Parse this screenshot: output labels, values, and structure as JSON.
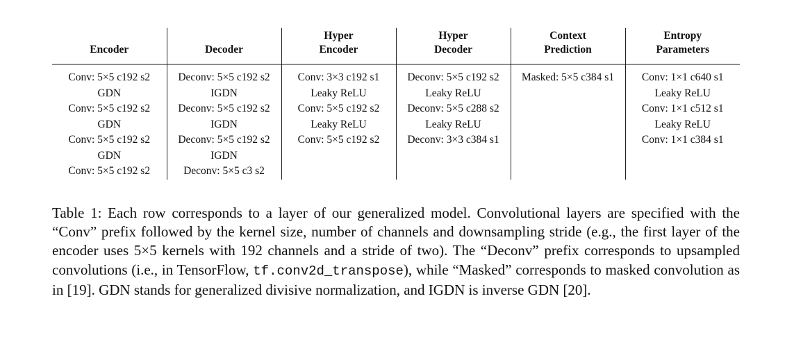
{
  "table": {
    "headers": [
      {
        "key": "encoder",
        "lines": [
          "Encoder"
        ]
      },
      {
        "key": "decoder",
        "lines": [
          "Decoder"
        ]
      },
      {
        "key": "hyper-encoder",
        "lines": [
          "Hyper",
          "Encoder"
        ]
      },
      {
        "key": "hyper-decoder",
        "lines": [
          "Hyper",
          "Decoder"
        ]
      },
      {
        "key": "context-prediction",
        "lines": [
          "Context",
          "Prediction"
        ]
      },
      {
        "key": "entropy-parameters",
        "lines": [
          "Entropy",
          "Parameters"
        ]
      }
    ],
    "columns": [
      [
        "Conv: 5×5 c192 s2",
        "GDN",
        "Conv: 5×5 c192 s2",
        "GDN",
        "Conv: 5×5 c192 s2",
        "GDN",
        "Conv: 5×5 c192 s2"
      ],
      [
        "Deconv: 5×5 c192 s2",
        "IGDN",
        "Deconv: 5×5 c192 s2",
        "IGDN",
        "Deconv: 5×5 c192 s2",
        "IGDN",
        "Deconv: 5×5 c3 s2"
      ],
      [
        "Conv: 3×3 c192 s1",
        "Leaky ReLU",
        "Conv: 5×5 c192 s2",
        "Leaky ReLU",
        "Conv: 5×5 c192 s2"
      ],
      [
        "Deconv: 5×5 c192 s2",
        "Leaky ReLU",
        "Deconv: 5×5 c288 s2",
        "Leaky ReLU",
        "Deconv: 3×3 c384 s1"
      ],
      [
        "Masked: 5×5 c384 s1"
      ],
      [
        "Conv: 1×1 c640 s1",
        "Leaky ReLU",
        "Conv: 1×1 c512 s1",
        "Leaky ReLU",
        "Conv: 1×1 c384 s1"
      ]
    ]
  },
  "caption": {
    "text_before_code": "Table 1: Each row corresponds to a layer of our generalized model. Convolutional layers are specified with the “Conv” prefix followed by the kernel size, number of channels and downsampling stride (e.g., the first layer of the encoder uses 5×5 kernels with 192 channels and a stride of two). The “Deconv” prefix corresponds to upsampled convolutions (i.e., in TensorFlow, ",
    "code": "tf.conv2d_transpose",
    "text_after_code": "), while “Masked” corresponds to masked convolution as in [19]. GDN stands for generalized divisive normalization, and IGDN is inverse GDN [20]."
  }
}
